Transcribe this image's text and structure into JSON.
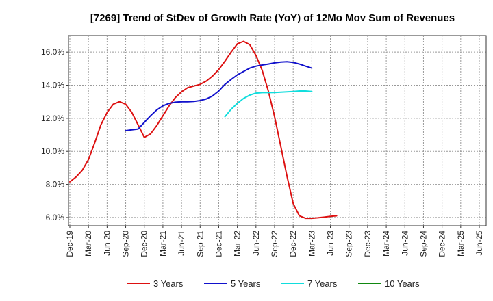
{
  "chart_data": {
    "type": "line",
    "title": "[7269]  Trend of StDev of Growth Rate (YoY) of 12Mo Mov Sum of Revenues",
    "xlabel": "",
    "ylabel": "",
    "ylim": [
      5.5,
      17.0
    ],
    "y_ticks": [
      6.0,
      8.0,
      10.0,
      12.0,
      14.0,
      16.0
    ],
    "y_tick_labels": [
      "6.0%",
      "8.0%",
      "10.0%",
      "12.0%",
      "14.0%",
      "16.0%"
    ],
    "x_tick_labels": [
      "Dec-19",
      "Mar-20",
      "Jun-20",
      "Sep-20",
      "Dec-20",
      "Mar-21",
      "Jun-21",
      "Sep-21",
      "Dec-21",
      "Mar-22",
      "Jun-22",
      "Sep-22",
      "Dec-22",
      "Mar-23",
      "Jun-23",
      "Sep-23",
      "Dec-23",
      "Mar-24",
      "Jun-24",
      "Sep-24",
      "Dec-24",
      "Mar-25",
      "Jun-25"
    ],
    "grid": true,
    "legend_position": "bottom",
    "series": [
      {
        "name": "3 Years",
        "color": "#dd1111",
        "start_index": 0,
        "values": [
          8.15,
          8.45,
          8.85,
          9.5,
          10.5,
          11.6,
          12.35,
          12.85,
          13.0,
          12.85,
          12.35,
          11.6,
          10.85,
          11.05,
          11.55,
          12.15,
          12.75,
          13.25,
          13.6,
          13.85,
          13.95,
          14.05,
          14.25,
          14.55,
          14.95,
          15.45,
          16.0,
          16.5,
          16.65,
          16.45,
          15.8,
          14.9,
          13.65,
          12.1,
          10.3,
          8.5,
          6.85,
          6.1,
          5.95,
          5.95,
          5.98,
          6.02,
          6.07,
          6.1
        ]
      },
      {
        "name": "5 Years",
        "color": "#1111cc",
        "start_index": 9,
        "values": [
          11.25,
          11.3,
          11.35,
          11.75,
          12.15,
          12.5,
          12.75,
          12.9,
          12.97,
          13.0,
          13.0,
          13.02,
          13.07,
          13.17,
          13.35,
          13.65,
          14.05,
          14.35,
          14.62,
          14.83,
          15.03,
          15.15,
          15.22,
          15.28,
          15.35,
          15.4,
          15.42,
          15.38,
          15.28,
          15.15,
          15.03
        ]
      },
      {
        "name": "7 Years",
        "color": "#11dddd",
        "start_index": 25,
        "values": [
          12.1,
          12.55,
          12.9,
          13.2,
          13.4,
          13.52,
          13.55,
          13.55,
          13.56,
          13.58,
          13.6,
          13.62,
          13.65,
          13.65,
          13.62
        ]
      },
      {
        "name": "10 Years",
        "color": "#118811",
        "start_index": 0,
        "values": []
      }
    ]
  }
}
